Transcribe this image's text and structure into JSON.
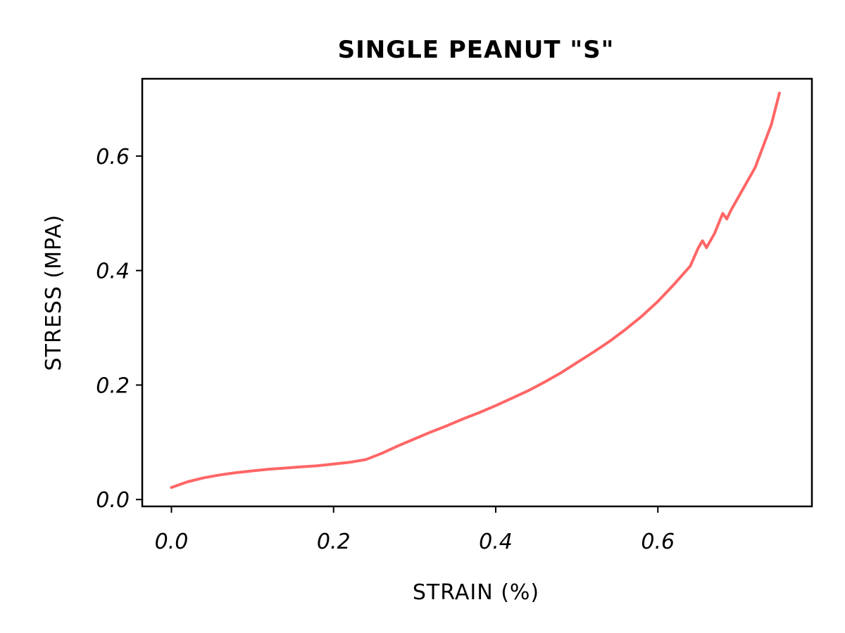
{
  "chart_data": {
    "type": "line",
    "title": "SINGLE PEANUT \"S\"",
    "xlabel": "STRAIN (%)",
    "ylabel": "STRESS (MPA)",
    "xlim": [
      -0.036,
      0.79
    ],
    "ylim": [
      -0.012,
      0.735
    ],
    "xticks": [
      0.0,
      0.2,
      0.4,
      0.6
    ],
    "xtick_labels": [
      "0.0",
      "0.2",
      "0.4",
      "0.6"
    ],
    "yticks": [
      0.0,
      0.2,
      0.4,
      0.6
    ],
    "ytick_labels": [
      "0.0",
      "0.2",
      "0.4",
      "0.6"
    ],
    "grid": false,
    "legend": "none",
    "series": [
      {
        "color": "#ff6666",
        "x": [
          0.0,
          0.02,
          0.04,
          0.06,
          0.08,
          0.1,
          0.12,
          0.14,
          0.16,
          0.18,
          0.2,
          0.22,
          0.24,
          0.26,
          0.28,
          0.3,
          0.32,
          0.34,
          0.36,
          0.38,
          0.4,
          0.42,
          0.44,
          0.46,
          0.48,
          0.5,
          0.52,
          0.54,
          0.56,
          0.58,
          0.6,
          0.62,
          0.64,
          0.65,
          0.655,
          0.66,
          0.67,
          0.68,
          0.685,
          0.69,
          0.7,
          0.72,
          0.74,
          0.75
        ],
        "y": [
          0.021,
          0.031,
          0.038,
          0.043,
          0.047,
          0.05,
          0.053,
          0.055,
          0.057,
          0.059,
          0.062,
          0.065,
          0.07,
          0.081,
          0.094,
          0.106,
          0.118,
          0.129,
          0.141,
          0.152,
          0.164,
          0.177,
          0.19,
          0.205,
          0.221,
          0.239,
          0.257,
          0.276,
          0.297,
          0.32,
          0.346,
          0.376,
          0.408,
          0.44,
          0.452,
          0.44,
          0.465,
          0.5,
          0.49,
          0.505,
          0.53,
          0.58,
          0.655,
          0.71
        ]
      }
    ]
  }
}
